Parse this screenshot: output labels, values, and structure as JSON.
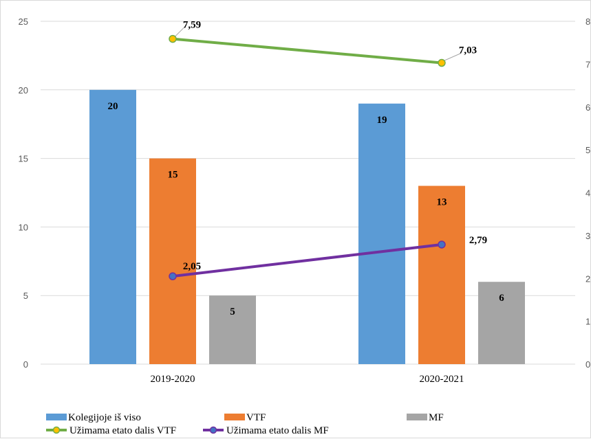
{
  "chart_data": {
    "type": "bar",
    "categories": [
      "2019-2020",
      "2020-2021"
    ],
    "series": [
      {
        "name": "Kolegijoje iš viso",
        "kind": "bar",
        "axis": "left",
        "color": "#5b9bd5",
        "values": [
          20,
          19
        ],
        "labels": [
          "20",
          "19"
        ]
      },
      {
        "name": "VTF",
        "kind": "bar",
        "axis": "left",
        "color": "#ed7d31",
        "values": [
          15,
          13
        ],
        "labels": [
          "15",
          "13"
        ]
      },
      {
        "name": "MF",
        "kind": "bar",
        "axis": "left",
        "color": "#a5a5a5",
        "values": [
          5,
          6
        ],
        "labels": [
          "5",
          "6"
        ]
      },
      {
        "name": "Užimama etato dalis VTF",
        "kind": "line",
        "axis": "right",
        "color": "#70ad47",
        "marker_color": "#ffc000",
        "values": [
          7.59,
          7.03
        ],
        "labels": [
          "7,59",
          "7,03"
        ]
      },
      {
        "name": "Užimama etato dalis MF",
        "kind": "line",
        "axis": "right",
        "color": "#7030a0",
        "marker_color": "#4472c4",
        "values": [
          2.05,
          2.79
        ],
        "labels": [
          "2,05",
          "2,79"
        ]
      }
    ],
    "y_left": {
      "min": 0,
      "max": 25,
      "ticks": [
        "0",
        "5",
        "10",
        "15",
        "20",
        "25"
      ]
    },
    "y_right": {
      "min": 0,
      "max": 8,
      "ticks": [
        "0",
        "1",
        "2",
        "3",
        "4",
        "5",
        "6",
        "7",
        "8"
      ]
    },
    "grid": true,
    "legend_position": "bottom",
    "title": "",
    "xlabel": "",
    "ylabel": ""
  }
}
